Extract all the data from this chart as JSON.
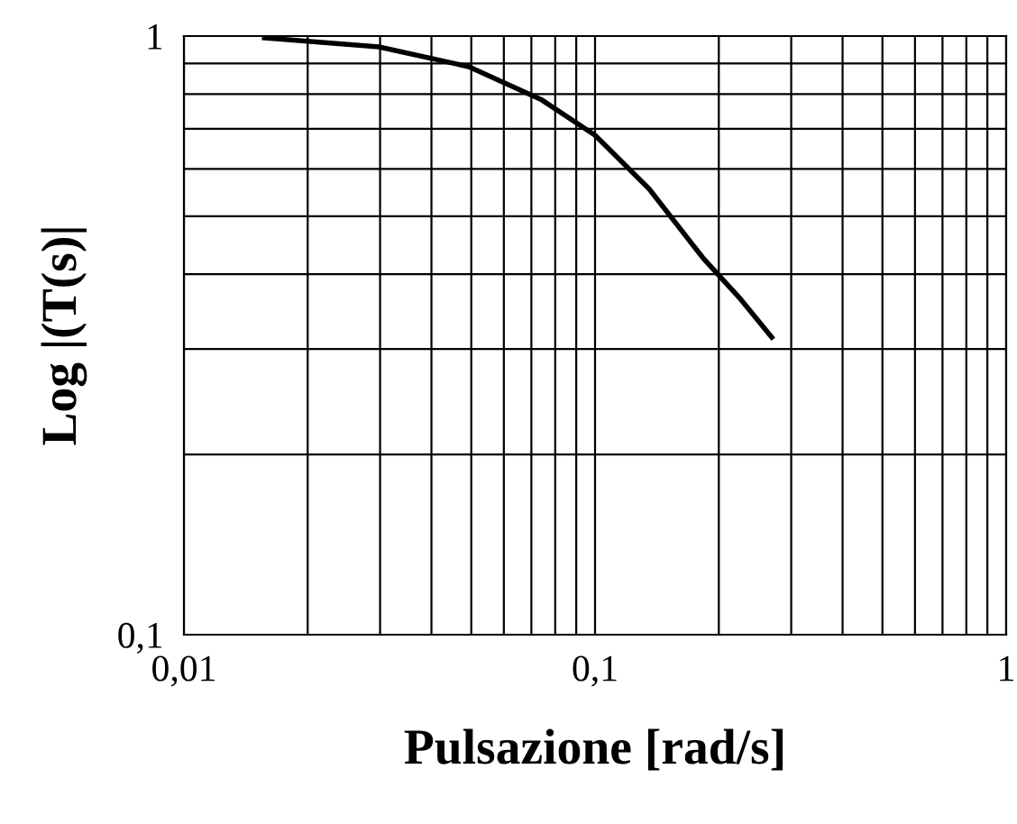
{
  "chart_data": {
    "type": "line",
    "xlabel": "Pulsazione [rad/s]",
    "ylabel": "Log |(T(s)|",
    "log": "xy",
    "grid": true,
    "marker": "none",
    "line_style": "solid",
    "x": [
      0.0157,
      0.0298,
      0.0493,
      0.0738,
      0.1,
      0.1355,
      0.183,
      0.224,
      0.269
    ],
    "series": [
      {
        "color": "#000000",
        "values": [
          0.993,
          0.959,
          0.889,
          0.784,
          0.683,
          0.555,
          0.426,
          0.366,
          0.314
        ]
      }
    ],
    "xlim": [
      0.01,
      1
    ],
    "ylim": [
      0.1,
      1
    ],
    "xticks": [
      {
        "value": 0.01,
        "label": "0,01"
      },
      {
        "value": 0.02,
        "label": null
      },
      {
        "value": 0.03,
        "label": null
      },
      {
        "value": 0.04,
        "label": null
      },
      {
        "value": 0.05,
        "label": null
      },
      {
        "value": 0.06,
        "label": null
      },
      {
        "value": 0.07,
        "label": null
      },
      {
        "value": 0.08,
        "label": null
      },
      {
        "value": 0.09,
        "label": null
      },
      {
        "value": 0.1,
        "label": "0,1"
      },
      {
        "value": 0.2,
        "label": null
      },
      {
        "value": 0.3,
        "label": null
      },
      {
        "value": 0.4,
        "label": null
      },
      {
        "value": 0.5,
        "label": null
      },
      {
        "value": 0.6,
        "label": null
      },
      {
        "value": 0.7,
        "label": null
      },
      {
        "value": 0.8,
        "label": null
      },
      {
        "value": 0.9,
        "label": null
      },
      1
    ],
    "yticks": [
      {
        "value": 0.1,
        "label": "0,1"
      },
      {
        "value": 0.2,
        "label": null
      },
      {
        "value": 0.3,
        "label": null
      },
      {
        "value": 0.4,
        "label": null
      },
      {
        "value": 0.5,
        "label": null
      },
      {
        "value": 0.6,
        "label": null
      },
      {
        "value": 0.7,
        "label": null
      },
      {
        "value": 0.8,
        "label": null
      },
      {
        "value": 0.9,
        "label": null
      },
      1
    ]
  }
}
